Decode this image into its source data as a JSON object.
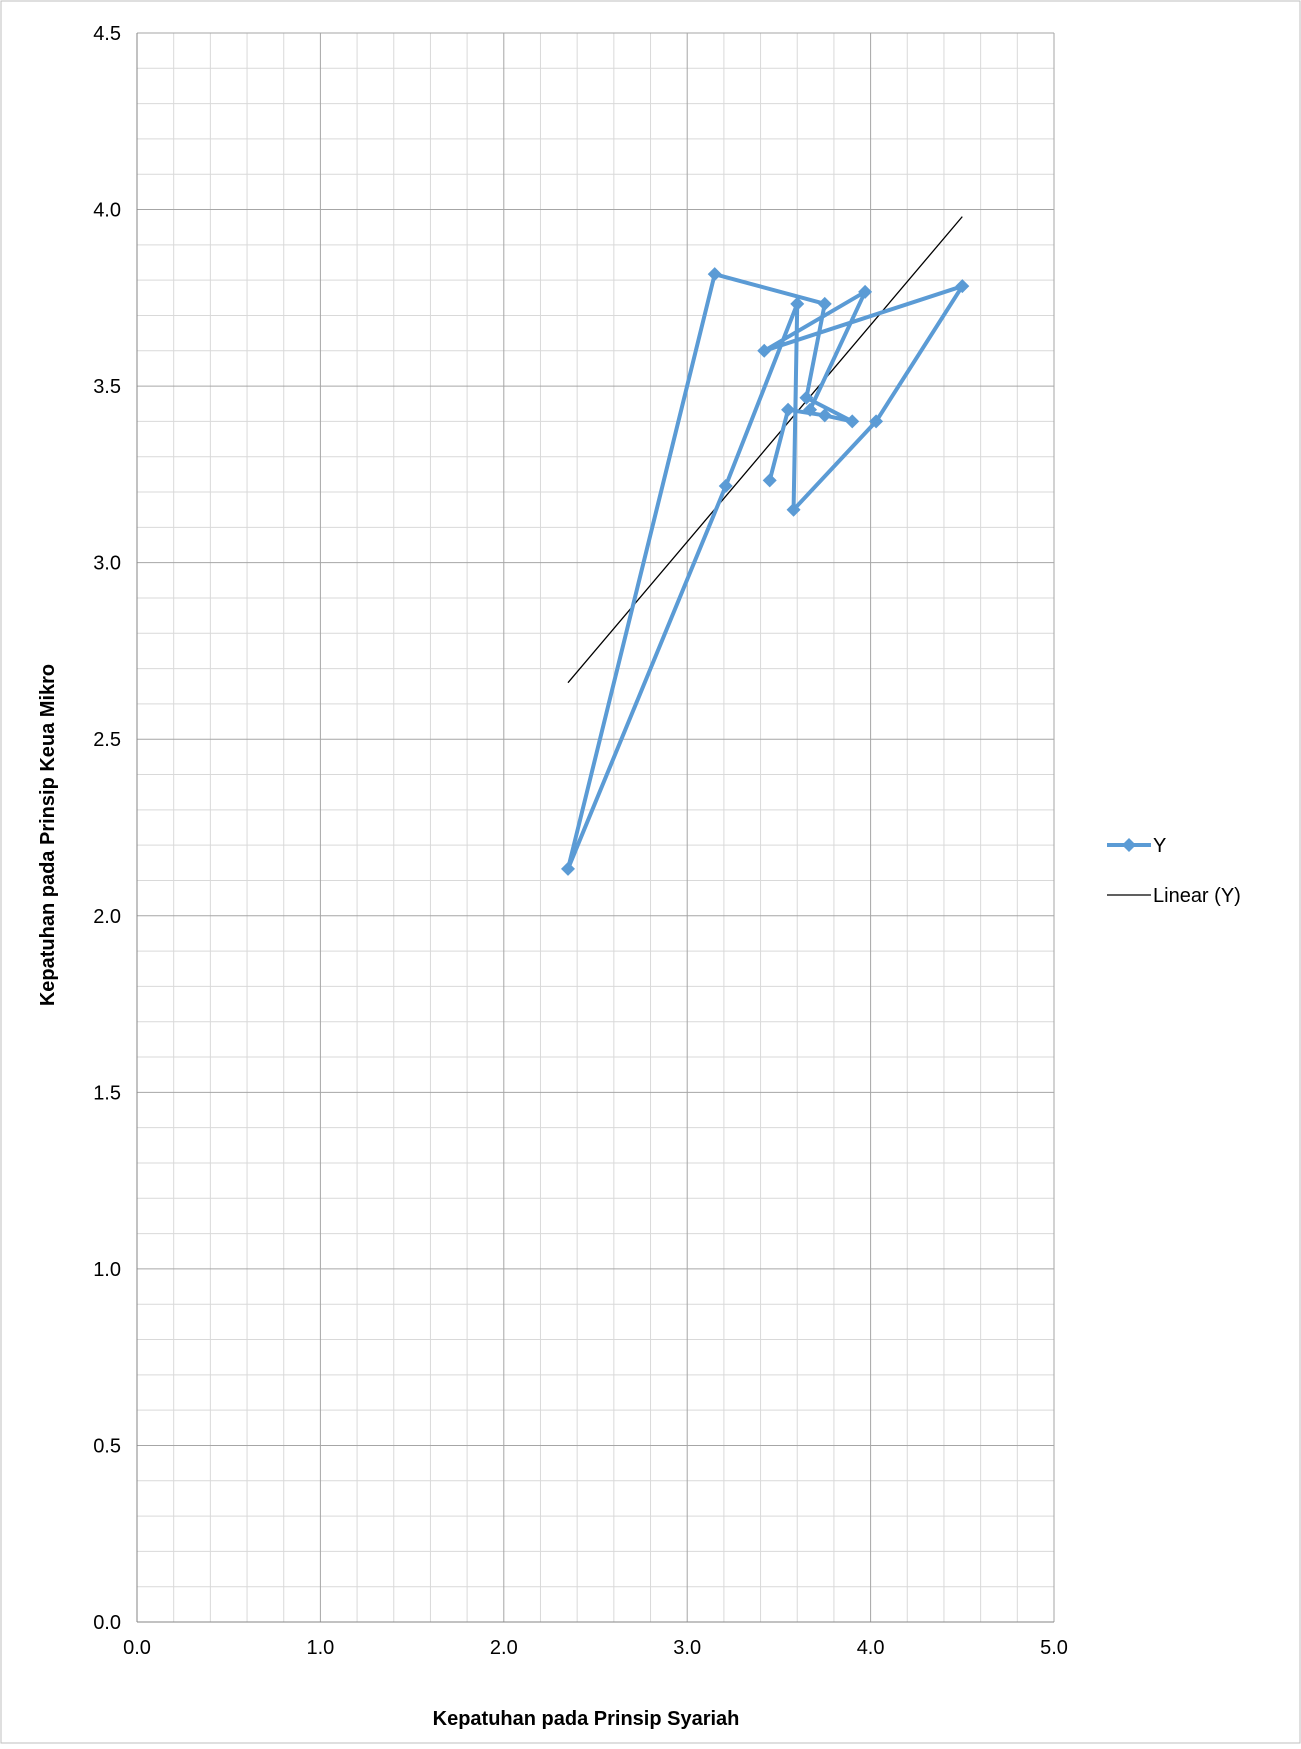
{
  "chart_data": {
    "type": "line",
    "xlabel": "Kepatuhan pada Prinsip Syariah",
    "ylabel": "Kepatuhan pada Prinsip Keua Mikro",
    "xlim": [
      0,
      5
    ],
    "ylim": [
      0,
      4.5
    ],
    "x_ticks": [
      "0.0",
      "1.0",
      "2.0",
      "3.0",
      "4.0",
      "5.0"
    ],
    "y_ticks": [
      "0.0",
      "0.5",
      "1.0",
      "1.5",
      "2.0",
      "2.5",
      "3.0",
      "3.5",
      "4.0",
      "4.5"
    ],
    "grid": true,
    "legend_position": "right",
    "series": [
      {
        "name": "Y",
        "color": "#5b9bd5",
        "marker": "diamond",
        "x": [
          3.45,
          3.55,
          3.75,
          3.9,
          3.65,
          3.75,
          3.15,
          2.35,
          3.21,
          3.6,
          3.58,
          4.03,
          4.5,
          3.42,
          3.97,
          3.67
        ],
        "y": [
          3.233,
          3.433,
          3.417,
          3.4,
          3.467,
          3.733,
          3.817,
          2.133,
          3.217,
          3.733,
          3.15,
          3.4,
          3.783,
          3.6,
          3.767,
          3.433
        ]
      }
    ],
    "trendline": {
      "name": "Linear (Y)",
      "color": "#000000",
      "x": [
        2.35,
        4.5
      ],
      "y": [
        2.66,
        3.98
      ]
    }
  }
}
